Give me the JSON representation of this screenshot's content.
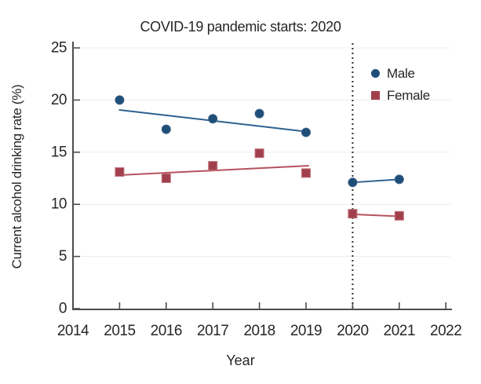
{
  "figure": {
    "title": "COVID-19 pandemic starts: 2020",
    "xlabel": "Year",
    "ylabel": "Current alcohol drinking rate (%)"
  },
  "legend": {
    "items": [
      {
        "label": "Male",
        "marker": "circle"
      },
      {
        "label": "Female",
        "marker": "square"
      }
    ]
  },
  "colors": {
    "male_marker": "#1f4e78",
    "male_marker_edge": "#38618a",
    "male_line": "#2e6190",
    "female_marker": "#a1404c",
    "female_marker_edge": "#c2737c",
    "female_line": "#b5525e",
    "axis": "#4d4d4d",
    "text": "#262626",
    "grid": "#ededed",
    "dotted_line": "#2e2e2e"
  },
  "chart_data": {
    "type": "scatter",
    "title": "COVID-19 pandemic starts: 2020",
    "xlabel": "Year",
    "ylabel": "Current alcohol drinking rate (%)",
    "xlim": [
      2014,
      2022
    ],
    "ylim": [
      0,
      25
    ],
    "x_ticks": [
      2014,
      2015,
      2016,
      2017,
      2018,
      2019,
      2020,
      2021,
      2022
    ],
    "y_ticks": [
      0,
      5,
      10,
      15,
      20,
      25
    ],
    "grid": "faint horizontal gridlines at y ticks",
    "legend_position": "upper right inside plot",
    "vline": {
      "x": 2020,
      "style": "dotted vertical",
      "meaning": "COVID-19 pandemic starts: 2020"
    },
    "x": [
      2015,
      2016,
      2017,
      2018,
      2019,
      2020,
      2021
    ],
    "series": [
      {
        "name": "Male",
        "marker": "circle",
        "values": [
          20.0,
          17.2,
          18.2,
          18.7,
          16.9,
          12.1,
          12.4
        ],
        "trend_segments": [
          {
            "x": [
              2015,
              2019.05
            ],
            "y": [
              19.05,
              16.95
            ]
          },
          {
            "x": [
              2020,
              2021
            ],
            "y": [
              12.1,
              12.4
            ]
          }
        ]
      },
      {
        "name": "Female",
        "marker": "square",
        "values": [
          13.1,
          12.5,
          13.7,
          14.9,
          13.0,
          9.1,
          8.9
        ],
        "trend_segments": [
          {
            "x": [
              2015,
              2019.05
            ],
            "y": [
              12.8,
              13.7
            ]
          },
          {
            "x": [
              2020,
              2021
            ],
            "y": [
              9.05,
              8.85
            ]
          }
        ]
      }
    ]
  }
}
